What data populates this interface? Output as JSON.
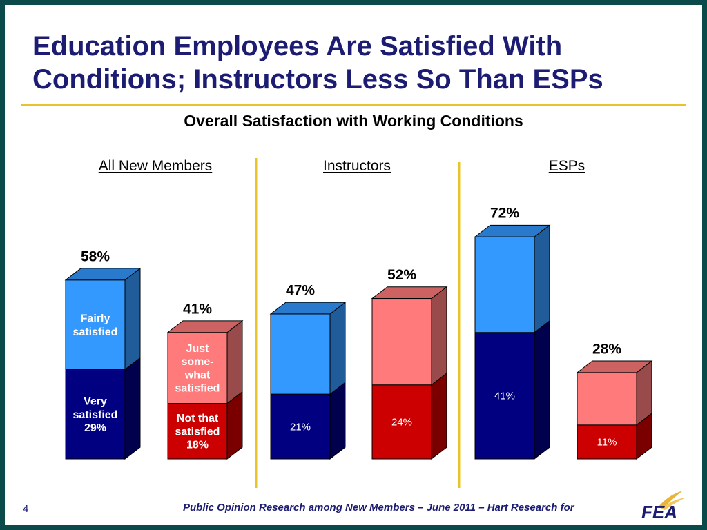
{
  "header": {
    "title_line1": "Education Employees Are Satisfied With",
    "title_line2": "Conditions; Instructors Less So Than ESPs"
  },
  "footer": {
    "page_number": "4",
    "source": "Public Opinion Research among New Members – June 2011 – Hart Research for",
    "logo_text": "FEA"
  },
  "colors": {
    "background": "#0b4a4a",
    "title": "#1c1c73",
    "accent_rule": "#e8c42c",
    "very_satisfied": "#000080",
    "fairly_satisfied": "#3399ff",
    "not_that_satisfied": "#cc0000",
    "just_somewhat_satisfied": "#ff7b7b"
  },
  "chart_data": {
    "type": "bar",
    "stacked": true,
    "title": "Overall Satisfaction with Working Conditions",
    "groups": [
      "All New Members",
      "Instructors",
      "ESPs"
    ],
    "bars": [
      {
        "group": "All New Members",
        "total_label": "58%",
        "total": 58,
        "segments": [
          {
            "name": "Very satisfied",
            "value": 29,
            "label": "Very satisfied 29%"
          },
          {
            "name": "Fairly satisfied",
            "value": 29,
            "label": "Fairly satisfied"
          }
        ]
      },
      {
        "group": "All New Members",
        "total_label": "41%",
        "total": 41,
        "segments": [
          {
            "name": "Not that satisfied",
            "value": 18,
            "label": "Not that satisfied 18%"
          },
          {
            "name": "Just somewhat satisfied",
            "value": 23,
            "label": "Just some- what satisfied"
          }
        ]
      },
      {
        "group": "Instructors",
        "total_label": "47%",
        "total": 47,
        "segments": [
          {
            "name": "Very satisfied",
            "value": 21,
            "label": "21%"
          },
          {
            "name": "Fairly satisfied",
            "value": 26,
            "label": ""
          }
        ]
      },
      {
        "group": "Instructors",
        "total_label": "52%",
        "total": 52,
        "segments": [
          {
            "name": "Not that satisfied",
            "value": 24,
            "label": "24%"
          },
          {
            "name": "Just somewhat satisfied",
            "value": 28,
            "label": ""
          }
        ]
      },
      {
        "group": "ESPs",
        "total_label": "72%",
        "total": 72,
        "segments": [
          {
            "name": "Very satisfied",
            "value": 41,
            "label": "41%"
          },
          {
            "name": "Fairly satisfied",
            "value": 31,
            "label": ""
          }
        ]
      },
      {
        "group": "ESPs",
        "total_label": "28%",
        "total": 28,
        "segments": [
          {
            "name": "Not that satisfied",
            "value": 11,
            "label": "11%"
          },
          {
            "name": "Just somewhat satisfied",
            "value": 17,
            "label": ""
          }
        ]
      }
    ]
  }
}
